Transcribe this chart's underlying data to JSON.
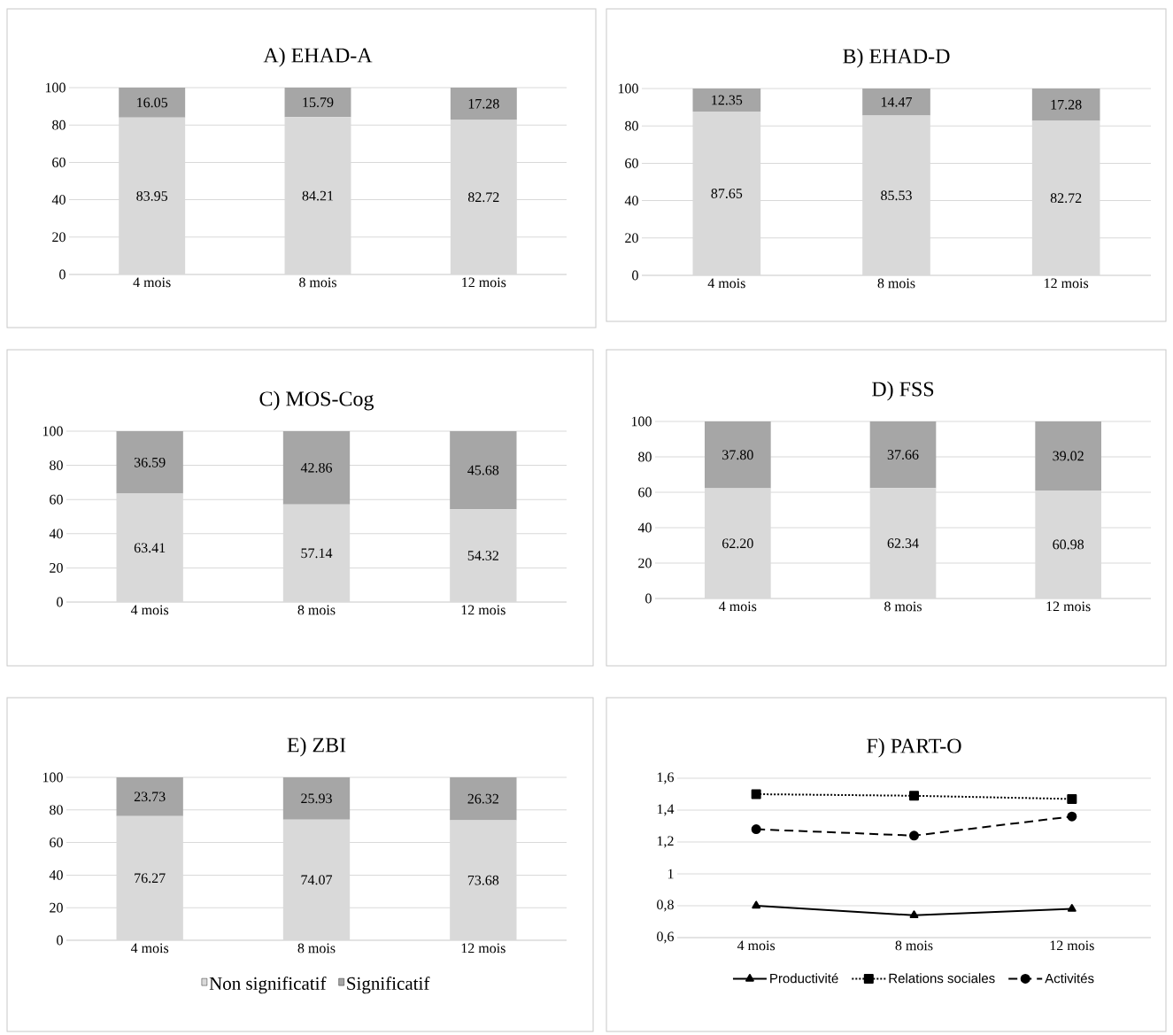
{
  "chart_data": [
    {
      "type": "bar",
      "stacked": true,
      "title": "A) EHAD-A",
      "categories": [
        "4 mois",
        "8 mois",
        "12 mois"
      ],
      "series": [
        {
          "color": "#d9d9d9",
          "values": [
            83.95,
            84.21,
            82.72
          ],
          "value_labels": [
            "83.95",
            "84.21",
            "82.72"
          ]
        },
        {
          "color": "#a6a6a6",
          "values": [
            16.05,
            15.79,
            17.28
          ],
          "value_labels": [
            "16.05",
            "15.79",
            "17.28"
          ]
        }
      ],
      "ylim": [
        0,
        100
      ],
      "yticks": [
        0,
        20,
        40,
        60,
        80,
        100
      ],
      "grid": "y",
      "legend": false
    },
    {
      "type": "bar",
      "stacked": true,
      "title": "B) EHAD-D",
      "categories": [
        "4 mois",
        "8 mois",
        "12 mois"
      ],
      "series": [
        {
          "color": "#d9d9d9",
          "values": [
            87.65,
            85.53,
            82.72
          ],
          "value_labels": [
            "87.65",
            "85.53",
            "82.72"
          ]
        },
        {
          "color": "#a6a6a6",
          "values": [
            12.35,
            14.47,
            17.28
          ],
          "value_labels": [
            "12.35",
            "14.47",
            "17.28"
          ]
        }
      ],
      "ylim": [
        0,
        100
      ],
      "yticks": [
        0,
        20,
        40,
        60,
        80,
        100
      ],
      "grid": "y",
      "legend": false
    },
    {
      "type": "bar",
      "stacked": true,
      "title": "C) MOS-Cog",
      "categories": [
        "4 mois",
        "8 mois",
        "12 mois"
      ],
      "series": [
        {
          "color": "#d9d9d9",
          "values": [
            63.41,
            57.14,
            54.32
          ],
          "value_labels": [
            "63.41",
            "57.14",
            "54.32"
          ]
        },
        {
          "color": "#a6a6a6",
          "values": [
            36.59,
            42.86,
            45.68
          ],
          "value_labels": [
            "36.59",
            "42.86",
            "45.68"
          ]
        }
      ],
      "ylim": [
        0,
        100
      ],
      "yticks": [
        0,
        20,
        40,
        60,
        80,
        100
      ],
      "grid": "y",
      "legend": false
    },
    {
      "type": "bar",
      "stacked": true,
      "title": "D) FSS",
      "categories": [
        "4 mois",
        "8 mois",
        "12 mois"
      ],
      "series": [
        {
          "color": "#d9d9d9",
          "values": [
            62.2,
            62.34,
            60.98
          ],
          "value_labels": [
            "62.20",
            "62.34",
            "60.98"
          ]
        },
        {
          "color": "#a6a6a6",
          "values": [
            37.8,
            37.66,
            39.02
          ],
          "value_labels": [
            "37.80",
            "37.66",
            "39.02"
          ]
        }
      ],
      "ylim": [
        0,
        100
      ],
      "yticks": [
        0,
        20,
        40,
        60,
        80,
        100
      ],
      "grid": "y",
      "legend": false
    },
    {
      "type": "bar",
      "stacked": true,
      "title": "E) ZBI",
      "categories": [
        "4 mois",
        "8 mois",
        "12 mois"
      ],
      "series": [
        {
          "name": "Non significatif",
          "color": "#d9d9d9",
          "values": [
            76.27,
            74.07,
            73.68
          ],
          "value_labels": [
            "76.27",
            "74.07",
            "73.68"
          ]
        },
        {
          "name": "Significatif",
          "color": "#a6a6a6",
          "values": [
            23.73,
            25.93,
            26.32
          ],
          "value_labels": [
            "23.73",
            "25.93",
            "26.32"
          ]
        }
      ],
      "ylim": [
        0,
        100
      ],
      "yticks": [
        0,
        20,
        40,
        60,
        80,
        100
      ],
      "grid": "y",
      "legend": "bottom"
    },
    {
      "type": "line",
      "title": "F) PART-O",
      "categories": [
        "4 mois",
        "8 mois",
        "12 mois"
      ],
      "series": [
        {
          "name": "Productivité",
          "color": "#000000",
          "marker": "triangle",
          "line_style": "solid",
          "values": [
            0.8,
            0.74,
            0.78
          ]
        },
        {
          "name": "Relations sociales",
          "color": "#000000",
          "marker": "square",
          "line_style": "dotted",
          "values": [
            1.5,
            1.49,
            1.47
          ]
        },
        {
          "name": "Activités",
          "color": "#000000",
          "marker": "circle",
          "line_style": "dashed",
          "values": [
            1.28,
            1.24,
            1.36
          ]
        }
      ],
      "ylim": [
        0.6,
        1.6
      ],
      "yticks": [
        {
          "value": 0.6,
          "label": "0,6"
        },
        {
          "value": 0.8,
          "label": "0,8"
        },
        1,
        {
          "value": 1.2,
          "label": "1,2"
        },
        {
          "value": 1.4,
          "label": "1,4"
        },
        {
          "value": 1.6,
          "label": "1,6"
        }
      ],
      "grid": "y",
      "legend": "bottom"
    }
  ]
}
